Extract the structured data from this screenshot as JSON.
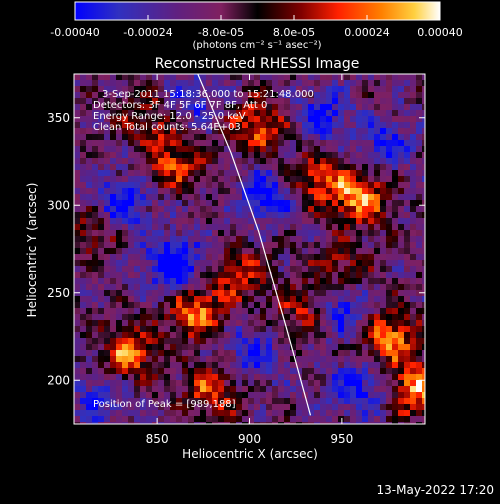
{
  "chart_data": {
    "type": "heatmap",
    "title": "Reconstructed RHESSI Image",
    "xlabel": "Heliocentric X (arcsec)",
    "ylabel": "Heliocentric Y (arcsec)",
    "xlim": [
      805,
      995
    ],
    "ylim": [
      175,
      375
    ],
    "x_ticks": [
      850,
      900,
      950
    ],
    "y_ticks": [
      200,
      250,
      300,
      350
    ],
    "colorbar": {
      "ticks": [
        -0.0004,
        -0.00024,
        -8e-05,
        8e-05,
        0.00024,
        0.0004
      ],
      "tick_labels": [
        "-0.00040",
        "-0.00024",
        "-8.0e-05",
        "8.0e-05",
        "0.00024",
        "0.00040"
      ],
      "unit_label": "(photons cm⁻² s⁻¹ asec⁻²)",
      "range": [
        -0.0004,
        0.0004
      ]
    },
    "annotations": {
      "time_range": "3-Sep-2011 15:18:36.000 to 15:21:48.000",
      "detectors": "Detectors: 3F 4F 5F 6F 7F 8F, Att 0",
      "energy_range": "Energy Range: 12.0 - 25.0 keV",
      "clean_counts": "Clean     Total counts: 5.64E+03",
      "peak": "Position of Peak = [989,188]"
    },
    "limb_curve": {
      "x": [
        872,
        890,
        905,
        920,
        933
      ],
      "y": [
        375,
        330,
        285,
        230,
        180
      ]
    },
    "bright_regions": [
      {
        "x": 960,
        "y": 305,
        "v": 0.0004
      },
      {
        "x": 870,
        "y": 240,
        "v": 0.00038
      },
      {
        "x": 835,
        "y": 215,
        "v": 0.00036
      },
      {
        "x": 975,
        "y": 225,
        "v": 0.00038
      },
      {
        "x": 990,
        "y": 195,
        "v": 0.0004
      },
      {
        "x": 860,
        "y": 325,
        "v": 0.0003
      },
      {
        "x": 905,
        "y": 345,
        "v": 0.00034
      },
      {
        "x": 935,
        "y": 315,
        "v": 0.0003
      },
      {
        "x": 895,
        "y": 260,
        "v": 0.00026
      },
      {
        "x": 930,
        "y": 240,
        "v": 0.00024
      },
      {
        "x": 880,
        "y": 195,
        "v": 0.0003
      },
      {
        "x": 815,
        "y": 285,
        "v": 0.00024
      },
      {
        "x": 950,
        "y": 265,
        "v": 0.00022
      },
      {
        "x": 845,
        "y": 350,
        "v": 0.00022
      }
    ],
    "dark_regions": [
      {
        "x": 860,
        "y": 265,
        "v": -0.0004
      },
      {
        "x": 830,
        "y": 300,
        "v": -0.00032
      },
      {
        "x": 910,
        "y": 305,
        "v": -0.0003
      },
      {
        "x": 950,
        "y": 240,
        "v": -0.0003
      },
      {
        "x": 940,
        "y": 350,
        "v": -0.00026
      },
      {
        "x": 870,
        "y": 360,
        "v": -0.0002
      },
      {
        "x": 960,
        "y": 195,
        "v": -0.00028
      },
      {
        "x": 900,
        "y": 215,
        "v": -0.00024
      },
      {
        "x": 975,
        "y": 335,
        "v": -0.00022
      },
      {
        "x": 820,
        "y": 190,
        "v": -0.0002
      }
    ]
  },
  "footer": {
    "date": "13-May-2022 17:20"
  },
  "colors": {
    "colormap": [
      "#0000ff",
      "#3030c0",
      "#602080",
      "#802060",
      "#000000",
      "#800000",
      "#ff2000",
      "#ff8000",
      "#ffd040",
      "#ffffff"
    ],
    "axis": "#ffffff",
    "limb": "#ffffff"
  }
}
